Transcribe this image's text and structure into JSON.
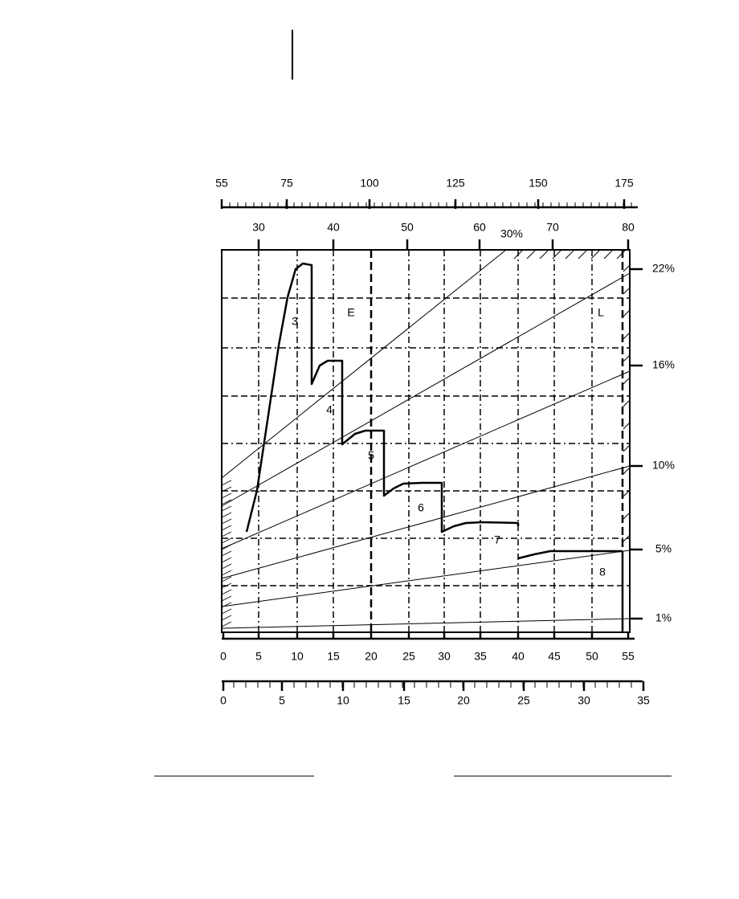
{
  "top_scale_1": {
    "labels": [
      55,
      75,
      100,
      125,
      150,
      175
    ]
  },
  "top_scale_2": {
    "labels": [
      30,
      40,
      50,
      60,
      70,
      80
    ],
    "slope_label": "30%"
  },
  "right_scale": {
    "labels": [
      "22%",
      "16%",
      "10%",
      "5%",
      "1%"
    ]
  },
  "bottom_scale_1": {
    "labels": [
      0,
      5,
      10,
      15,
      20,
      25,
      30,
      35,
      40,
      45,
      50,
      55
    ]
  },
  "bottom_scale_2": {
    "labels": [
      0,
      5,
      10,
      15,
      20,
      25,
      30,
      35
    ]
  },
  "gear_labels": [
    "3",
    "4",
    "5",
    "6",
    "7",
    "8"
  ],
  "region_labels": [
    "E",
    "L"
  ]
}
